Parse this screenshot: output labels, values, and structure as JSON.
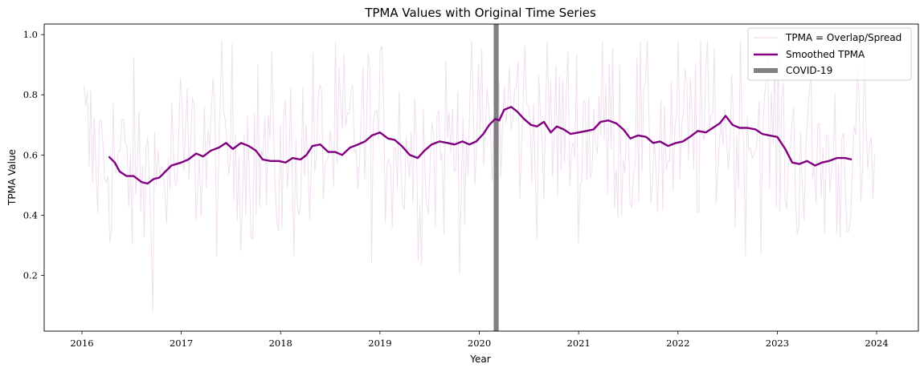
{
  "colors": {
    "raw": "#800080",
    "smoothed": "#800080",
    "covid": "#808080"
  },
  "chart_data": {
    "type": "line",
    "title": "TPMA Values with Original Time Series",
    "xlabel": "Year",
    "ylabel": "TPMA Value",
    "xlim": [
      2015.62,
      2024.42
    ],
    "ylim": [
      0.015,
      1.035
    ],
    "x_ticks": [
      {
        "value": 2016,
        "label": "2016"
      },
      {
        "value": 2017,
        "label": "2017"
      },
      {
        "value": 2018,
        "label": "2018"
      },
      {
        "value": 2019,
        "label": "2019"
      },
      {
        "value": 2020,
        "label": "2020"
      },
      {
        "value": 2021,
        "label": "2021"
      },
      {
        "value": 2022,
        "label": "2022"
      },
      {
        "value": 2023,
        "label": "2023"
      },
      {
        "value": 2024,
        "label": "2024"
      }
    ],
    "y_ticks": [
      {
        "value": 0.2,
        "label": "0.2"
      },
      {
        "value": 0.4,
        "label": "0.4"
      },
      {
        "value": 0.6,
        "label": "0.6"
      },
      {
        "value": 0.8,
        "label": "0.8"
      },
      {
        "value": 1.0,
        "label": "1.0"
      }
    ],
    "grid": false,
    "legend_position": "top-right",
    "covid_marker": {
      "name": "COVID-19",
      "x": 2020.17,
      "width_years": 0.05
    },
    "series": [
      {
        "name": "TPMA = Overlap/Spread",
        "style": "thin-faint",
        "x_start": 2016.02,
        "x_end": 2023.98,
        "samples": 460,
        "x": [
          2016.02,
          2016.1,
          2016.2,
          2016.3,
          2016.45,
          2016.6,
          2016.75,
          2016.9,
          2017.0,
          2017.1,
          2017.3,
          2017.5,
          2017.7,
          2017.9,
          2018.0,
          2018.2,
          2018.4,
          2018.6,
          2018.8,
          2019.0,
          2019.2,
          2019.4,
          2019.6,
          2019.8,
          2020.0,
          2020.2,
          2020.4,
          2020.6,
          2020.8,
          2021.0,
          2021.2,
          2021.4,
          2021.6,
          2021.8,
          2022.0,
          2022.2,
          2022.4,
          2022.6,
          2022.8,
          2023.0,
          2023.2,
          2023.4,
          2023.6,
          2023.8,
          2023.98
        ],
        "center": [
          0.66,
          0.6,
          0.59,
          0.58,
          0.55,
          0.53,
          0.52,
          0.55,
          0.58,
          0.6,
          0.62,
          0.63,
          0.62,
          0.58,
          0.57,
          0.6,
          0.63,
          0.63,
          0.66,
          0.67,
          0.64,
          0.6,
          0.63,
          0.64,
          0.66,
          0.73,
          0.74,
          0.7,
          0.68,
          0.67,
          0.71,
          0.69,
          0.66,
          0.64,
          0.64,
          0.68,
          0.71,
          0.69,
          0.68,
          0.67,
          0.6,
          0.57,
          0.58,
          0.59,
          0.6
        ],
        "spread": 0.17,
        "min": 0.06,
        "max": 0.98
      },
      {
        "name": "Smoothed TPMA",
        "style": "thick",
        "x": [
          2016.27,
          2016.33,
          2016.38,
          2016.45,
          2016.52,
          2016.6,
          2016.66,
          2016.72,
          2016.78,
          2016.84,
          2016.9,
          2017.0,
          2017.07,
          2017.15,
          2017.22,
          2017.3,
          2017.38,
          2017.45,
          2017.52,
          2017.6,
          2017.68,
          2017.75,
          2017.82,
          2017.9,
          2017.98,
          2018.05,
          2018.12,
          2018.2,
          2018.26,
          2018.32,
          2018.4,
          2018.48,
          2018.55,
          2018.62,
          2018.7,
          2018.78,
          2018.85,
          2018.92,
          2019.0,
          2019.08,
          2019.15,
          2019.22,
          2019.3,
          2019.38,
          2019.45,
          2019.52,
          2019.6,
          2019.68,
          2019.75,
          2019.83,
          2019.9,
          2019.97,
          2020.04,
          2020.1,
          2020.16,
          2020.2,
          2020.25,
          2020.32,
          2020.38,
          2020.45,
          2020.52,
          2020.58,
          2020.65,
          2020.72,
          2020.78,
          2020.85,
          2020.92,
          2021.0,
          2021.08,
          2021.15,
          2021.22,
          2021.3,
          2021.38,
          2021.45,
          2021.52,
          2021.6,
          2021.68,
          2021.75,
          2021.82,
          2021.9,
          2021.98,
          2022.05,
          2022.12,
          2022.2,
          2022.28,
          2022.35,
          2022.42,
          2022.48,
          2022.55,
          2022.62,
          2022.7,
          2022.78,
          2022.85,
          2022.92,
          2023.0,
          2023.08,
          2023.15,
          2023.22,
          2023.3,
          2023.38,
          2023.45,
          2023.52,
          2023.6,
          2023.68,
          2023.75
        ],
        "y": [
          0.595,
          0.575,
          0.545,
          0.53,
          0.53,
          0.51,
          0.505,
          0.52,
          0.525,
          0.545,
          0.565,
          0.575,
          0.585,
          0.605,
          0.595,
          0.615,
          0.625,
          0.64,
          0.62,
          0.64,
          0.63,
          0.615,
          0.585,
          0.58,
          0.58,
          0.575,
          0.59,
          0.585,
          0.6,
          0.63,
          0.635,
          0.61,
          0.61,
          0.6,
          0.625,
          0.635,
          0.645,
          0.665,
          0.675,
          0.655,
          0.65,
          0.63,
          0.6,
          0.59,
          0.615,
          0.635,
          0.645,
          0.64,
          0.635,
          0.645,
          0.635,
          0.645,
          0.67,
          0.7,
          0.72,
          0.715,
          0.75,
          0.76,
          0.745,
          0.72,
          0.7,
          0.695,
          0.71,
          0.675,
          0.695,
          0.685,
          0.67,
          0.675,
          0.68,
          0.685,
          0.71,
          0.715,
          0.705,
          0.685,
          0.655,
          0.665,
          0.66,
          0.64,
          0.645,
          0.63,
          0.64,
          0.645,
          0.66,
          0.68,
          0.675,
          0.69,
          0.705,
          0.73,
          0.7,
          0.69,
          0.69,
          0.685,
          0.67,
          0.665,
          0.66,
          0.62,
          0.575,
          0.57,
          0.58,
          0.565,
          0.575,
          0.58,
          0.59,
          0.59,
          0.585
        ]
      }
    ]
  }
}
